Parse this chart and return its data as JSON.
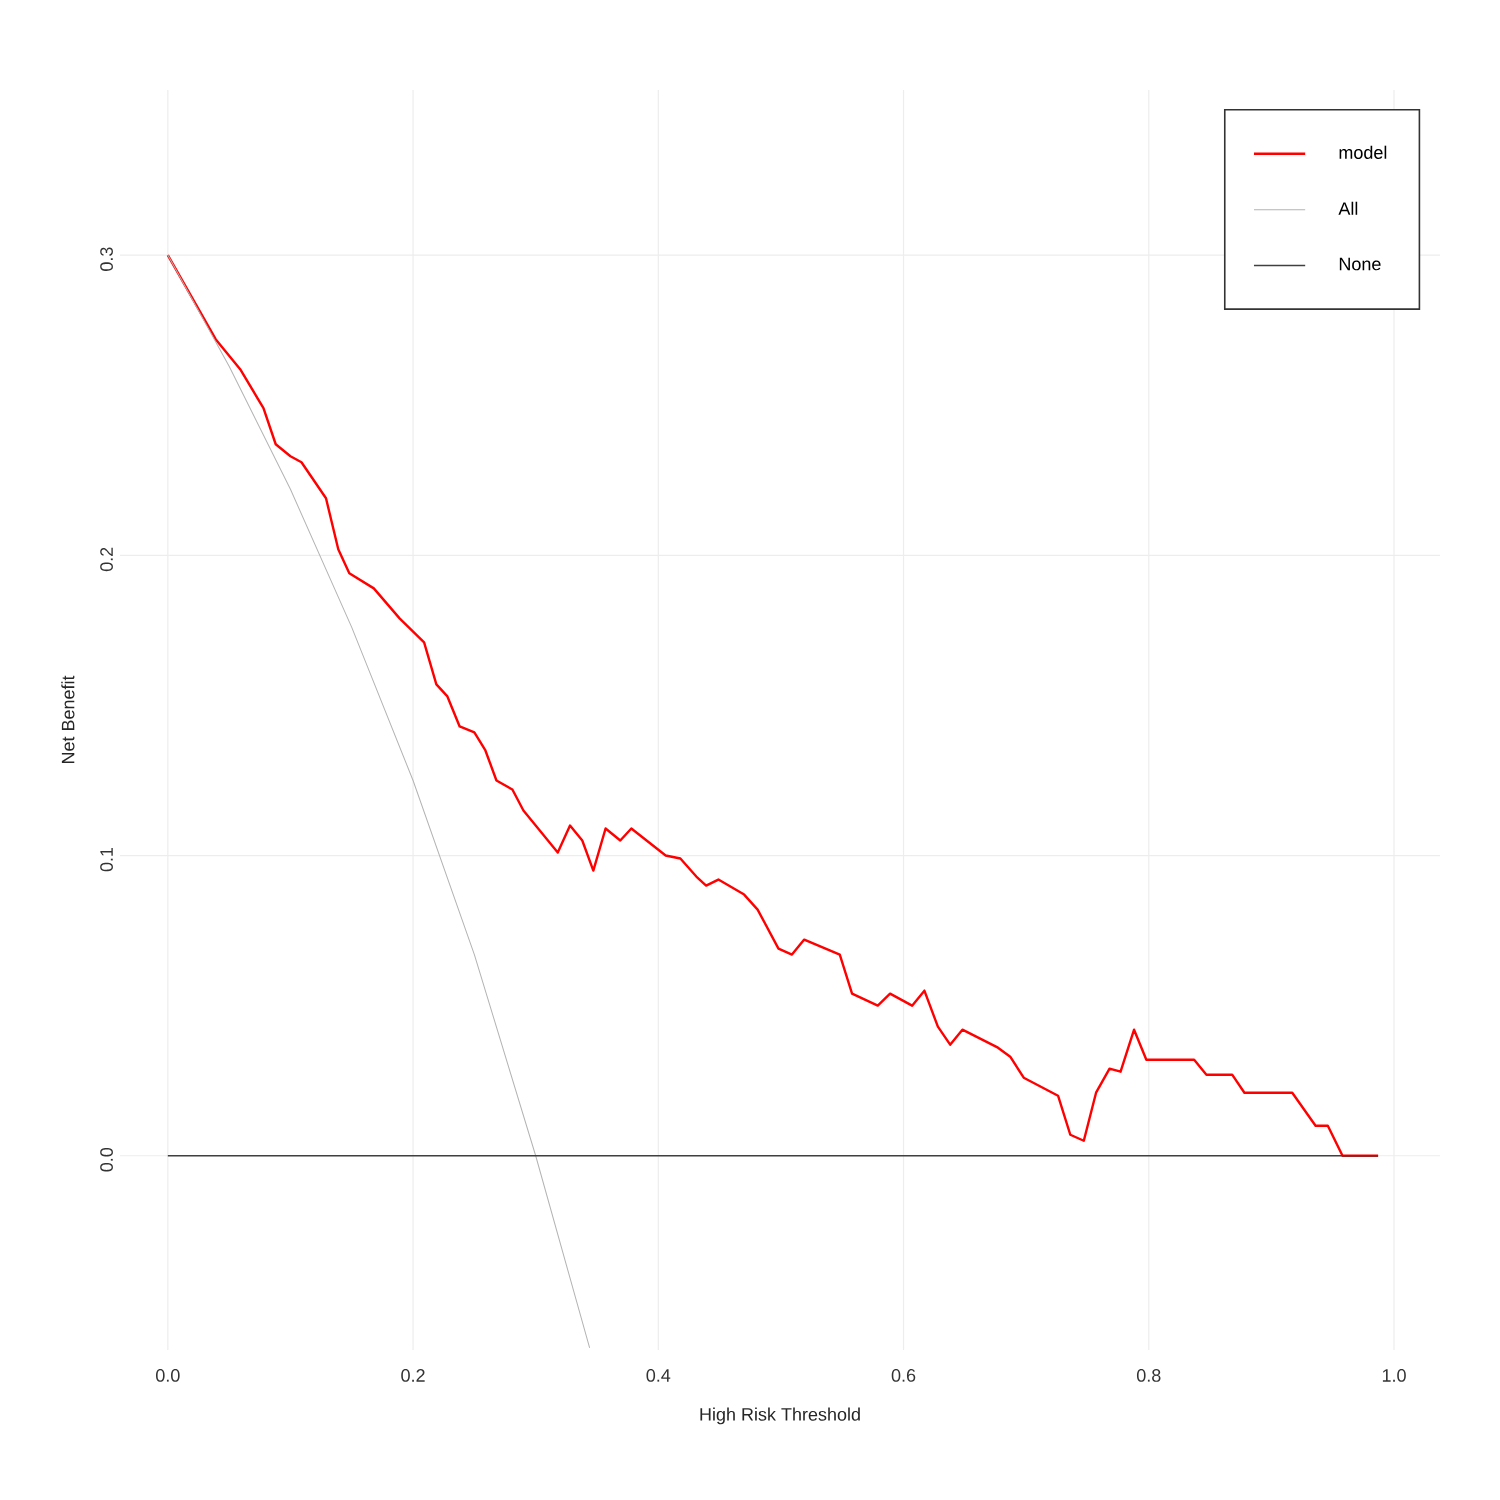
{
  "chart_data": {
    "type": "line",
    "xlabel": "High Risk Threshold",
    "ylabel": "Net Benefit",
    "xlim": [
      -0.039,
      1.0375
    ],
    "ylim": [
      -0.0647,
      0.355
    ],
    "xticks": [
      {
        "value": 0,
        "label": "0.0"
      },
      0.2,
      0.4,
      0.6,
      0.8,
      {
        "value": 1,
        "label": "1.0"
      }
    ],
    "yticks": [
      {
        "value": 0,
        "label": "0.0"
      },
      0.1,
      0.2,
      0.3
    ],
    "grid": true,
    "legend": "top right",
    "line_style": "solid",
    "marker": "none",
    "series": [
      {
        "name": "model",
        "color": "#ff0000",
        "x": [
          0,
          0.039,
          0.059,
          0.078,
          0.088,
          0.1,
          0.109,
          0.129,
          0.139,
          0.148,
          0.168,
          0.189,
          0.209,
          0.219,
          0.228,
          0.238,
          0.25,
          0.259,
          0.268,
          0.281,
          0.29,
          0.3,
          0.318,
          0.328,
          0.338,
          0.347,
          0.357,
          0.369,
          0.378,
          0.406,
          0.418,
          0.431,
          0.439,
          0.449,
          0.47,
          0.481,
          0.498,
          0.509,
          0.519,
          0.548,
          0.558,
          0.579,
          0.589,
          0.607,
          0.617,
          0.628,
          0.638,
          0.648,
          0.677,
          0.687,
          0.698,
          0.726,
          0.736,
          0.747,
          0.757,
          0.768,
          0.777,
          0.788,
          0.798,
          0.837,
          0.847,
          0.868,
          0.878,
          0.917,
          0.936,
          0.946,
          0.958,
          0.987
        ],
        "values": [
          0.3,
          0.272,
          0.262,
          0.249,
          0.237,
          0.233,
          0.231,
          0.219,
          0.202,
          0.194,
          0.189,
          0.179,
          0.171,
          0.157,
          0.153,
          0.143,
          0.141,
          0.135,
          0.125,
          0.122,
          0.115,
          0.11,
          0.101,
          0.11,
          0.105,
          0.095,
          0.109,
          0.105,
          0.109,
          0.1,
          0.099,
          0.093,
          0.09,
          0.092,
          0.087,
          0.082,
          0.069,
          0.067,
          0.072,
          0.067,
          0.054,
          0.05,
          0.054,
          0.05,
          0.055,
          0.043,
          0.037,
          0.042,
          0.036,
          0.033,
          0.026,
          0.02,
          0.007,
          0.005,
          0.021,
          0.029,
          0.028,
          0.042,
          0.032,
          0.032,
          0.027,
          0.027,
          0.021,
          0.021,
          0.01,
          0.01,
          0,
          0
        ]
      },
      {
        "name": "All",
        "color": "#b3b3b3",
        "x": [
          0,
          0.05,
          0.1,
          0.15,
          0.2,
          0.25,
          0.3,
          0.344
        ],
        "values": [
          0.3,
          0.263,
          0.222,
          0.176,
          0.125,
          0.067,
          0.0,
          -0.064
        ]
      },
      {
        "name": "None",
        "color": "#404040",
        "x": [
          0,
          0.987
        ],
        "values": [
          0,
          0
        ]
      }
    ]
  }
}
